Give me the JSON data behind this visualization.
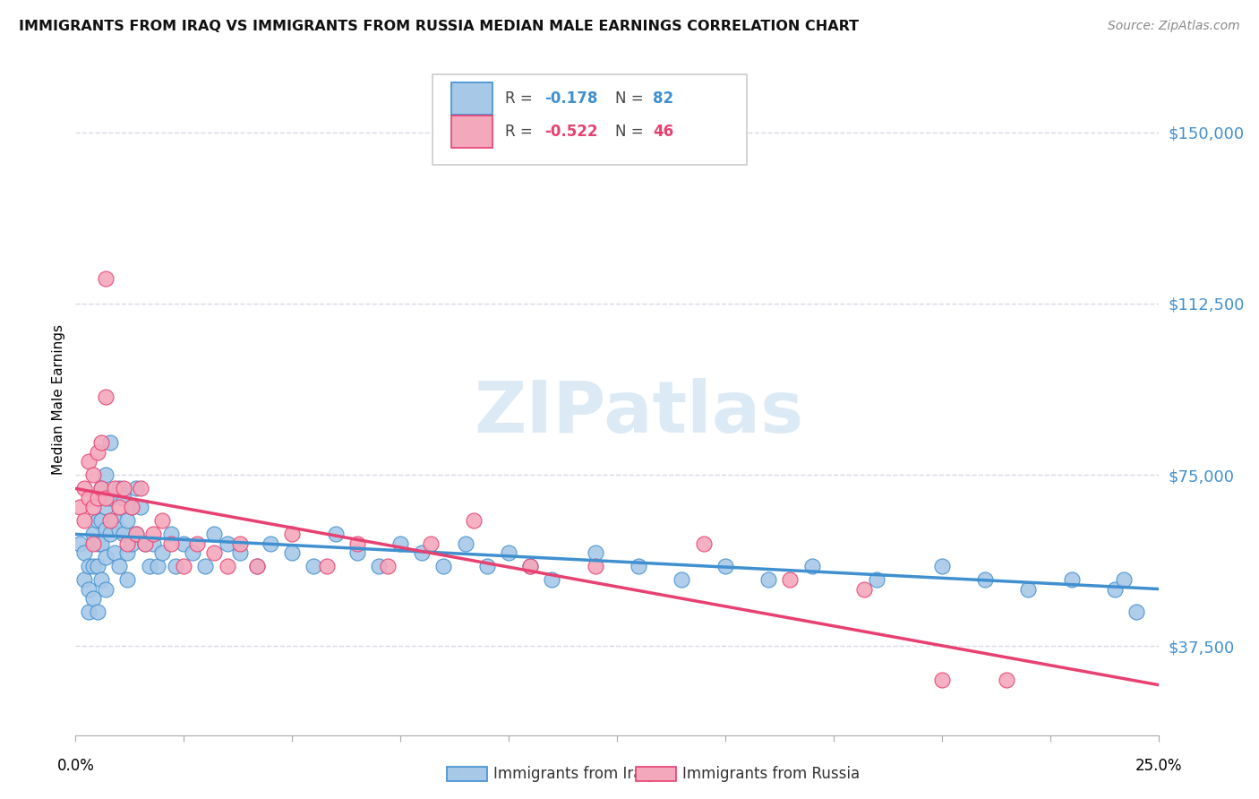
{
  "title": "IMMIGRANTS FROM IRAQ VS IMMIGRANTS FROM RUSSIA MEDIAN MALE EARNINGS CORRELATION CHART",
  "source": "Source: ZipAtlas.com",
  "ylabel": "Median Male Earnings",
  "ytick_labels": [
    "$37,500",
    "$75,000",
    "$112,500",
    "$150,000"
  ],
  "ytick_values": [
    37500,
    75000,
    112500,
    150000
  ],
  "ylim": [
    18000,
    165000
  ],
  "xlim": [
    0.0,
    0.25
  ],
  "iraq_color": "#a8c8e8",
  "russia_color": "#f4a8bc",
  "iraq_line_color": "#4090d0",
  "russia_line_color": "#e84070",
  "iraq_R": -0.178,
  "iraq_N": 82,
  "russia_R": -0.522,
  "russia_N": 46,
  "legend_label_iraq": "Immigrants from Iraq",
  "legend_label_russia": "Immigrants from Russia",
  "background_color": "#ffffff",
  "grid_color": "#d8d8e8",
  "iraq_line_y0": 62000,
  "iraq_line_y1": 50000,
  "russia_line_y0": 72000,
  "russia_line_y1": 29000,
  "iraq_x": [
    0.001,
    0.002,
    0.002,
    0.003,
    0.003,
    0.003,
    0.004,
    0.004,
    0.004,
    0.005,
    0.005,
    0.005,
    0.005,
    0.006,
    0.006,
    0.006,
    0.006,
    0.007,
    0.007,
    0.007,
    0.007,
    0.007,
    0.008,
    0.008,
    0.008,
    0.009,
    0.009,
    0.01,
    0.01,
    0.01,
    0.011,
    0.011,
    0.012,
    0.012,
    0.012,
    0.013,
    0.013,
    0.014,
    0.014,
    0.015,
    0.016,
    0.017,
    0.018,
    0.019,
    0.02,
    0.022,
    0.023,
    0.025,
    0.027,
    0.03,
    0.032,
    0.035,
    0.038,
    0.042,
    0.045,
    0.05,
    0.055,
    0.06,
    0.065,
    0.07,
    0.075,
    0.08,
    0.085,
    0.09,
    0.095,
    0.1,
    0.105,
    0.11,
    0.12,
    0.13,
    0.14,
    0.15,
    0.16,
    0.17,
    0.185,
    0.2,
    0.21,
    0.22,
    0.23,
    0.24,
    0.242,
    0.245
  ],
  "iraq_y": [
    60000,
    52000,
    58000,
    50000,
    55000,
    45000,
    62000,
    55000,
    48000,
    65000,
    60000,
    55000,
    45000,
    72000,
    65000,
    60000,
    52000,
    75000,
    68000,
    63000,
    57000,
    50000,
    82000,
    70000,
    62000,
    65000,
    58000,
    72000,
    63000,
    55000,
    70000,
    62000,
    65000,
    58000,
    52000,
    68000,
    60000,
    72000,
    62000,
    68000,
    60000,
    55000,
    60000,
    55000,
    58000,
    62000,
    55000,
    60000,
    58000,
    55000,
    62000,
    60000,
    58000,
    55000,
    60000,
    58000,
    55000,
    62000,
    58000,
    55000,
    60000,
    58000,
    55000,
    60000,
    55000,
    58000,
    55000,
    52000,
    58000,
    55000,
    52000,
    55000,
    52000,
    55000,
    52000,
    55000,
    52000,
    50000,
    52000,
    50000,
    52000,
    45000
  ],
  "russia_x": [
    0.001,
    0.002,
    0.002,
    0.003,
    0.003,
    0.004,
    0.004,
    0.004,
    0.005,
    0.005,
    0.006,
    0.006,
    0.007,
    0.007,
    0.007,
    0.008,
    0.009,
    0.01,
    0.011,
    0.012,
    0.013,
    0.014,
    0.015,
    0.016,
    0.018,
    0.02,
    0.022,
    0.025,
    0.028,
    0.032,
    0.035,
    0.038,
    0.042,
    0.05,
    0.058,
    0.065,
    0.072,
    0.082,
    0.092,
    0.105,
    0.12,
    0.145,
    0.165,
    0.182,
    0.2,
    0.215
  ],
  "russia_y": [
    68000,
    72000,
    65000,
    78000,
    70000,
    75000,
    68000,
    60000,
    80000,
    70000,
    82000,
    72000,
    118000,
    92000,
    70000,
    65000,
    72000,
    68000,
    72000,
    60000,
    68000,
    62000,
    72000,
    60000,
    62000,
    65000,
    60000,
    55000,
    60000,
    58000,
    55000,
    60000,
    55000,
    62000,
    55000,
    60000,
    55000,
    60000,
    65000,
    55000,
    55000,
    60000,
    52000,
    50000,
    30000,
    30000
  ]
}
